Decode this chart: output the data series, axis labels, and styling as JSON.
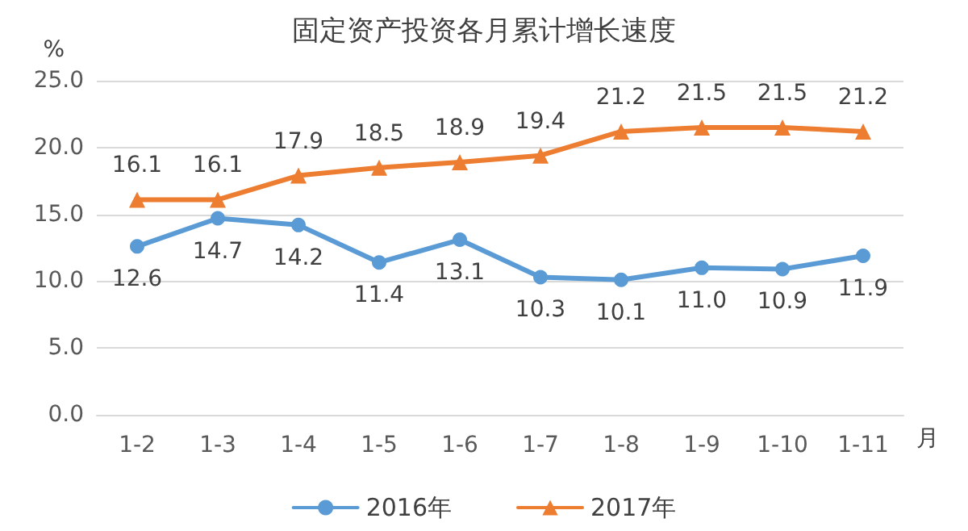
{
  "chart_data": {
    "type": "line",
    "title": "固定资产投资各月累计增长速度",
    "xlabel": "月",
    "ylabel": "%",
    "categories": [
      "1-2",
      "1-3",
      "1-4",
      "1-5",
      "1-6",
      "1-7",
      "1-8",
      "1-9",
      "1-10",
      "1-11"
    ],
    "series": [
      {
        "name": "2016年",
        "color": "#5b9bd5",
        "marker": "circle",
        "values": [
          12.6,
          14.7,
          14.2,
          11.4,
          13.1,
          10.3,
          10.1,
          11.0,
          10.9,
          11.9
        ],
        "value_labels": [
          "12.6",
          "14.7",
          "14.2",
          "11.4",
          "13.1",
          "10.3",
          "10.1",
          "11.0",
          "10.9",
          "11.9"
        ]
      },
      {
        "name": "2017年",
        "color": "#ed7d31",
        "marker": "triangle",
        "values": [
          16.1,
          16.1,
          17.9,
          18.5,
          18.9,
          19.4,
          21.2,
          21.5,
          21.5,
          21.2
        ],
        "value_labels": [
          "16.1",
          "16.1",
          "17.9",
          "18.5",
          "18.9",
          "19.4",
          "21.2",
          "21.5",
          "21.5",
          "21.2"
        ]
      }
    ],
    "ylim": [
      0,
      25
    ],
    "yticks": [
      {
        "value": 0,
        "label": "0.0"
      },
      {
        "value": 5,
        "label": "5.0"
      },
      {
        "value": 10,
        "label": "10.0"
      },
      {
        "value": 15,
        "label": "15.0"
      },
      {
        "value": 20,
        "label": "20.0"
      },
      {
        "value": 25,
        "label": "25.0"
      }
    ],
    "grid": "y",
    "legend": "bottom",
    "line_style": "solid"
  }
}
